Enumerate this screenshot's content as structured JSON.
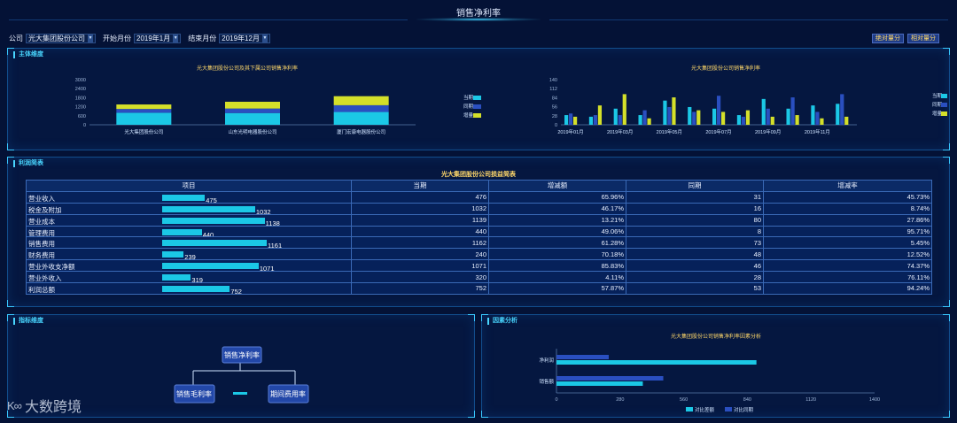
{
  "header": {
    "title": "销售净利率"
  },
  "filters": [
    {
      "label": "公司",
      "value": "光大集团股份公司"
    },
    {
      "label": "开始月份",
      "value": "2019年1月"
    },
    {
      "label": "结束月份",
      "value": "2019年12月"
    }
  ],
  "buttons": {
    "absolute": "绝对量分",
    "relative": "相对量分"
  },
  "panels": {
    "main_dim": "主体维度",
    "profit_table": "利润简表",
    "indicator_dim": "指标维度",
    "factor_analysis": "因素分析"
  },
  "colors": {
    "cyan": "#1bc8e6",
    "blue": "#2a4fc0",
    "yellow": "#d4e02a",
    "accent": "#49d6ff"
  },
  "chart_data": [
    {
      "type": "bar",
      "stacked": true,
      "title": "光大集团股份公司及其下属公司销售净利率",
      "categories": [
        "光大集团股份公司",
        "山东光明电器股份公司",
        "厦门宏康电器股份公司"
      ],
      "series": [
        {
          "name": "当期",
          "values": [
            800,
            780,
            850
          ]
        },
        {
          "name": "同期",
          "values": [
            250,
            300,
            450
          ]
        },
        {
          "name": "增量",
          "values": [
            300,
            450,
            600
          ]
        }
      ],
      "yticks": [
        "3000",
        "2400",
        "1800",
        "1200",
        "600",
        "0"
      ],
      "ylim": [
        0,
        3000
      ],
      "legend": "right"
    },
    {
      "type": "bar",
      "title": "光大集团股份公司销售净利率",
      "categories": [
        "2019年01月",
        "2019年02月",
        "2019年03月",
        "2019年04月",
        "2019年05月",
        "2019年06月",
        "2019年07月",
        "2019年08月",
        "2019年09月",
        "2019年10月",
        "2019年11月",
        "2019年12月"
      ],
      "xticks": [
        "2019年01月",
        "2019年03月",
        "2019年05月",
        "2019年07月",
        "2019年09月",
        "2019年11月"
      ],
      "series": [
        {
          "name": "当期",
          "values": [
            30,
            25,
            50,
            30,
            75,
            55,
            50,
            30,
            80,
            50,
            60,
            65
          ]
        },
        {
          "name": "同期",
          "values": [
            35,
            30,
            30,
            45,
            55,
            40,
            90,
            25,
            50,
            85,
            40,
            95
          ]
        },
        {
          "name": "增量",
          "values": [
            25,
            60,
            95,
            20,
            85,
            45,
            40,
            45,
            25,
            30,
            20,
            25
          ]
        }
      ],
      "yticks": [
        "140",
        "112",
        "84",
        "56",
        "28",
        "0"
      ],
      "ylim": [
        0,
        140
      ],
      "legend": "right"
    },
    {
      "type": "bar",
      "orientation": "horizontal",
      "title": "光大集团股份公司销售净利率因素分析",
      "categories": [
        "净利润",
        "销售额"
      ],
      "series": [
        {
          "name": "对比差额",
          "values": [
            880,
            380
          ]
        },
        {
          "name": "对比同期",
          "values": [
            230,
            470
          ]
        }
      ],
      "xticks": [
        "0",
        "280",
        "560",
        "840",
        "1120",
        "1400"
      ],
      "xlim": [
        0,
        1400
      ],
      "legend": "bottom"
    }
  ],
  "profit_table": {
    "title": "光大集团股份公司损益简表",
    "columns": [
      "项目",
      "当期",
      "增减额",
      "同期",
      "增减率"
    ],
    "rows": [
      {
        "name": "营业收入",
        "bar": 475,
        "current": "476",
        "change": "65.96%",
        "prior": "31",
        "rate": "45.73%"
      },
      {
        "name": "税金及附加",
        "bar": 1032,
        "current": "1032",
        "change": "46.17%",
        "prior": "16",
        "rate": "8.74%"
      },
      {
        "name": "营业成本",
        "bar": 1138,
        "current": "1139",
        "change": "13.21%",
        "prior": "80",
        "rate": "27.86%"
      },
      {
        "name": "管理费用",
        "bar": 440,
        "current": "440",
        "change": "49.06%",
        "prior": "8",
        "rate": "95.71%"
      },
      {
        "name": "销售费用",
        "bar": 1161,
        "current": "1162",
        "change": "61.28%",
        "prior": "73",
        "rate": "5.45%"
      },
      {
        "name": "财务费用",
        "bar": 239,
        "current": "240",
        "change": "70.18%",
        "prior": "48",
        "rate": "12.52%"
      },
      {
        "name": "营业外收支净额",
        "bar": 1071,
        "current": "1071",
        "change": "85.83%",
        "prior": "46",
        "rate": "74.37%"
      },
      {
        "name": "营业外收入",
        "bar": 319,
        "current": "320",
        "change": "4.11%",
        "prior": "28",
        "rate": "76.11%"
      },
      {
        "name": "利润总额",
        "bar": 752,
        "current": "752",
        "change": "57.87%",
        "prior": "53",
        "rate": "94.24%"
      }
    ]
  },
  "indicator_tree": {
    "root": "销售净利率",
    "left": "销售毛利率",
    "right": "期间费用率"
  },
  "logo": {
    "text": "大数跨境",
    "mark": "K∞"
  }
}
